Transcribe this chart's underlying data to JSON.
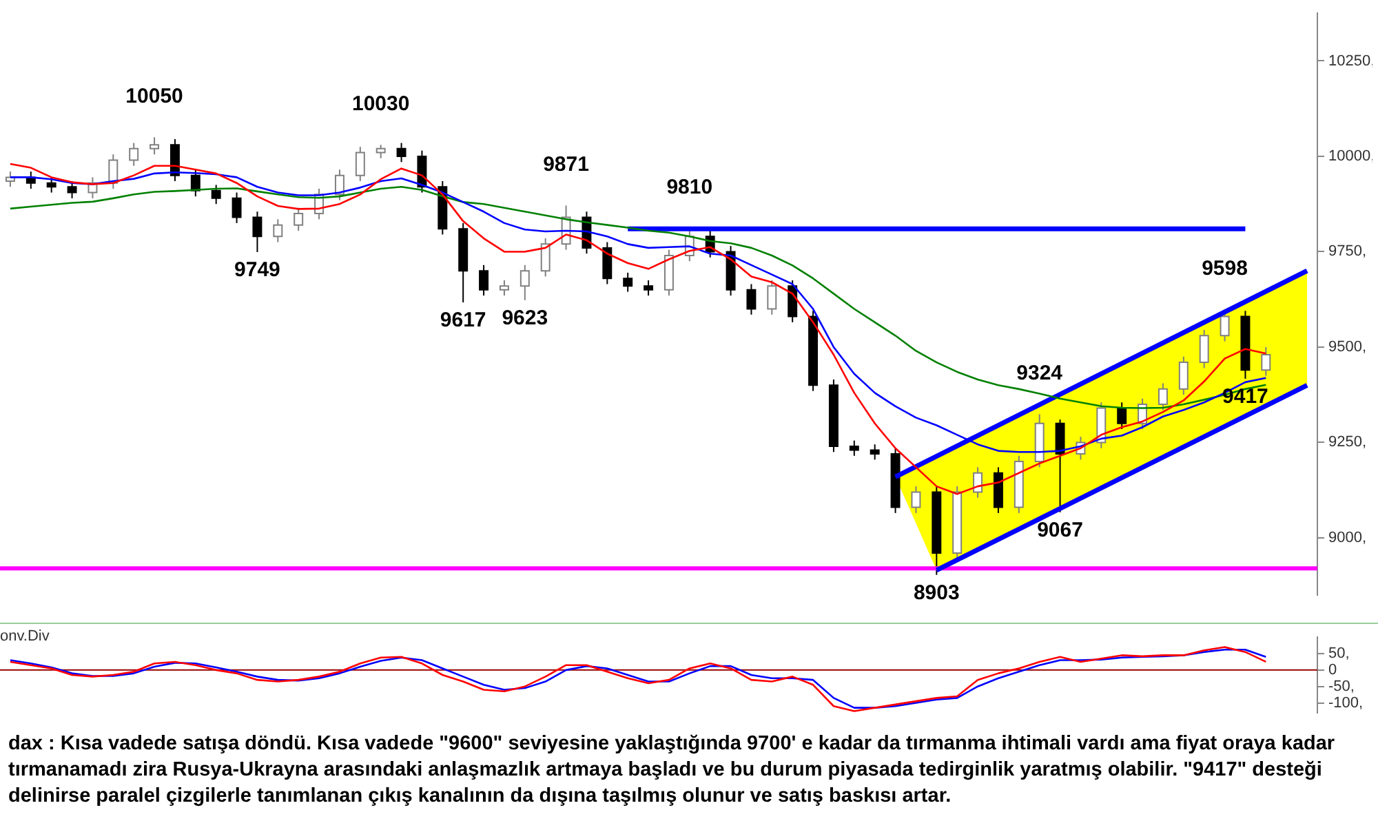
{
  "chart_data": [
    {
      "type": "candlestick",
      "categories": [
        null,
        null,
        null,
        null,
        null,
        null,
        null,
        null,
        null,
        null,
        null,
        null,
        null,
        null,
        null,
        null,
        null,
        null,
        null,
        null,
        null,
        null,
        null,
        null,
        null,
        null,
        null,
        null,
        null,
        null,
        null,
        null,
        null,
        null,
        null,
        null,
        null,
        null,
        null,
        null,
        null,
        null,
        null,
        null,
        null,
        null,
        null,
        null,
        null,
        null,
        null,
        null,
        null,
        null,
        null,
        null,
        null,
        null,
        null,
        null,
        null,
        null,
        null,
        null
      ],
      "ohlc": [
        [
          9935,
          9960,
          9920,
          9945
        ],
        [
          9945,
          9960,
          9915,
          9930
        ],
        [
          9930,
          9945,
          9905,
          9920
        ],
        [
          9920,
          9935,
          9890,
          9905
        ],
        [
          9905,
          9945,
          9890,
          9930
        ],
        [
          9930,
          10005,
          9915,
          9990
        ],
        [
          9990,
          10035,
          9975,
          10020
        ],
        [
          10020,
          10050,
          10005,
          10030
        ],
        [
          10030,
          10045,
          9935,
          9950
        ],
        [
          9950,
          9965,
          9895,
          9910
        ],
        [
          9910,
          9925,
          9875,
          9890
        ],
        [
          9890,
          9905,
          9825,
          9840
        ],
        [
          9840,
          9855,
          9749,
          9790
        ],
        [
          9790,
          9835,
          9775,
          9820
        ],
        [
          9820,
          9865,
          9805,
          9850
        ],
        [
          9850,
          9915,
          9835,
          9900
        ],
        [
          9900,
          9965,
          9885,
          9950
        ],
        [
          9950,
          10025,
          9935,
          10010
        ],
        [
          10010,
          10030,
          9995,
          10020
        ],
        [
          10020,
          10035,
          9985,
          10000
        ],
        [
          10000,
          10015,
          9905,
          9920
        ],
        [
          9920,
          9935,
          9795,
          9810
        ],
        [
          9810,
          9825,
          9617,
          9700
        ],
        [
          9700,
          9715,
          9635,
          9650
        ],
        [
          9650,
          9675,
          9635,
          9660
        ],
        [
          9660,
          9715,
          9623,
          9700
        ],
        [
          9700,
          9785,
          9685,
          9770
        ],
        [
          9770,
          9871,
          9755,
          9840
        ],
        [
          9840,
          9855,
          9745,
          9760
        ],
        [
          9760,
          9775,
          9665,
          9680
        ],
        [
          9680,
          9695,
          9645,
          9660
        ],
        [
          9660,
          9675,
          9635,
          9650
        ],
        [
          9650,
          9755,
          9635,
          9740
        ],
        [
          9740,
          9810,
          9725,
          9790
        ],
        [
          9790,
          9805,
          9735,
          9750
        ],
        [
          9750,
          9765,
          9635,
          9650
        ],
        [
          9650,
          9665,
          9585,
          9600
        ],
        [
          9600,
          9675,
          9585,
          9660
        ],
        [
          9660,
          9675,
          9565,
          9580
        ],
        [
          9580,
          9595,
          9385,
          9400
        ],
        [
          9400,
          9415,
          9225,
          9240
        ],
        [
          9240,
          9255,
          9215,
          9230
        ],
        [
          9230,
          9245,
          9205,
          9220
        ],
        [
          9220,
          9235,
          9065,
          9080
        ],
        [
          9080,
          9135,
          9065,
          9120
        ],
        [
          9120,
          9135,
          8903,
          8960
        ],
        [
          8960,
          9135,
          8945,
          9120
        ],
        [
          9120,
          9185,
          9105,
          9170
        ],
        [
          9170,
          9185,
          9065,
          9080
        ],
        [
          9080,
          9215,
          9065,
          9200
        ],
        [
          9200,
          9324,
          9185,
          9300
        ],
        [
          9300,
          9310,
          9067,
          9220
        ],
        [
          9220,
          9265,
          9205,
          9250
        ],
        [
          9250,
          9355,
          9235,
          9340
        ],
        [
          9340,
          9355,
          9285,
          9300
        ],
        [
          9300,
          9365,
          9285,
          9350
        ],
        [
          9350,
          9405,
          9335,
          9390
        ],
        [
          9390,
          9475,
          9375,
          9460
        ],
        [
          9460,
          9545,
          9445,
          9530
        ],
        [
          9530,
          9598,
          9515,
          9580
        ],
        [
          9580,
          9595,
          9417,
          9440
        ],
        [
          9440,
          9500,
          9425,
          9480
        ],
        null,
        null
      ],
      "series": [
        {
          "type": "line",
          "color": "#ff0000",
          "values": [
            9980,
            9970,
            9945,
            9932,
            9927,
            9930,
            9950,
            9975,
            9975,
            9965,
            9955,
            9930,
            9895,
            9870,
            9862,
            9863,
            9875,
            9900,
            9940,
            9968,
            9950,
            9900,
            9830,
            9785,
            9750,
            9750,
            9760,
            9795,
            9780,
            9745,
            9720,
            9705,
            9730,
            9752,
            9762,
            9730,
            9685,
            9670,
            9640,
            9565,
            9480,
            9380,
            9300,
            9235,
            9185,
            9135,
            9115,
            9135,
            9145,
            9170,
            9195,
            9215,
            9235,
            9270,
            9290,
            9305,
            9330,
            9360,
            9410,
            9470,
            9495,
            9483,
            null,
            null
          ]
        },
        {
          "type": "line",
          "color": "#0000ff",
          "values": [
            9945,
            9945,
            9940,
            9930,
            9927,
            9935,
            9941,
            9955,
            9958,
            9956,
            9953,
            9945,
            9920,
            9905,
            9898,
            9898,
            9905,
            9918,
            9935,
            9942,
            9925,
            9905,
            9880,
            9855,
            9825,
            9808,
            9803,
            9805,
            9803,
            9790,
            9770,
            9760,
            9762,
            9764,
            9745,
            9740,
            9715,
            9690,
            9665,
            9600,
            9500,
            9430,
            9380,
            9345,
            9315,
            9295,
            9270,
            9245,
            9228,
            9225,
            9225,
            9228,
            9240,
            9260,
            9268,
            9290,
            9318,
            9335,
            9355,
            9380,
            9408,
            9419,
            null,
            null
          ]
        },
        {
          "type": "line",
          "color": "#008000",
          "values": [
            9863,
            9868,
            9873,
            9878,
            9881,
            9890,
            9900,
            9907,
            9909,
            9912,
            9915,
            9916,
            9908,
            9900,
            9893,
            9891,
            9895,
            9905,
            9915,
            9920,
            9912,
            9895,
            9880,
            9875,
            9865,
            9855,
            9845,
            9835,
            9827,
            9820,
            9813,
            9805,
            9800,
            9790,
            9778,
            9772,
            9760,
            9740,
            9714,
            9680,
            9640,
            9600,
            9565,
            9530,
            9490,
            9460,
            9435,
            9415,
            9400,
            9390,
            9378,
            9365,
            9355,
            9345,
            9341,
            9340,
            9341,
            9350,
            9362,
            9375,
            9390,
            9401,
            null,
            null
          ]
        },
        {
          "type": "line",
          "color": "#0000ff",
          "values": [
            null,
            null,
            null,
            null,
            null,
            null,
            null,
            null,
            null,
            null,
            null,
            null,
            null,
            null,
            null,
            null,
            null,
            null,
            null,
            null,
            null,
            null,
            null,
            null,
            null,
            null,
            null,
            null,
            null,
            null,
            null,
            null,
            null,
            null,
            null,
            null,
            null,
            null,
            null,
            null,
            null,
            null,
            null,
            9160,
            null,
            null,
            null,
            null,
            null,
            null,
            null,
            null,
            null,
            null,
            null,
            null,
            null,
            null,
            null,
            null,
            null,
            null,
            null,
            9700
          ]
        },
        {
          "type": "line",
          "color": "#0000ff",
          "values": [
            null,
            null,
            null,
            null,
            null,
            null,
            null,
            null,
            null,
            null,
            null,
            null,
            null,
            null,
            null,
            null,
            null,
            null,
            null,
            null,
            null,
            null,
            null,
            null,
            null,
            null,
            null,
            null,
            null,
            null,
            null,
            null,
            null,
            null,
            null,
            null,
            null,
            null,
            null,
            null,
            null,
            null,
            null,
            null,
            null,
            8915,
            null,
            null,
            null,
            null,
            null,
            null,
            null,
            null,
            null,
            null,
            null,
            null,
            null,
            null,
            null,
            null,
            null,
            9400
          ],
          "lower": [
            null,
            null,
            null,
            null,
            null,
            null,
            null,
            null,
            null,
            null,
            null,
            null,
            null,
            null,
            null,
            null,
            null,
            null,
            null,
            null,
            null,
            null,
            null,
            null,
            null,
            null,
            null,
            null,
            null,
            null,
            null,
            null,
            null,
            null,
            null,
            null,
            null,
            null,
            null,
            null,
            null,
            null,
            null,
            9160,
            9038,
            8915,
            8942,
            8969,
            8996,
            9023,
            9050,
            9077,
            9104,
            9131,
            9158,
            9185,
            9212,
            9239,
            9266,
            9293,
            9320,
            9347,
            9374,
            9400
          ],
          "upper": [
            null,
            null,
            null,
            null,
            null,
            null,
            null,
            null,
            null,
            null,
            null,
            null,
            null,
            null,
            null,
            null,
            null,
            null,
            null,
            null,
            null,
            null,
            null,
            null,
            null,
            null,
            null,
            null,
            null,
            null,
            null,
            null,
            null,
            null,
            null,
            null,
            null,
            null,
            null,
            null,
            null,
            null,
            null,
            9160,
            9187,
            9214,
            9241,
            9268,
            9295,
            9322,
            9349,
            9376,
            9403,
            9430,
            9457,
            9484,
            9511,
            9538,
            9565,
            9592,
            9619,
            9646,
            9673,
            9700
          ]
        },
        {
          "type": "line",
          "color": "#0000ff",
          "values": [
            null,
            null,
            null,
            null,
            null,
            null,
            null,
            null,
            null,
            null,
            null,
            null,
            null,
            null,
            null,
            null,
            null,
            null,
            null,
            null,
            null,
            null,
            null,
            null,
            null,
            null,
            null,
            null,
            null,
            null,
            9810,
            null,
            null,
            null,
            null,
            null,
            null,
            null,
            null,
            null,
            null,
            null,
            null,
            null,
            null,
            null,
            null,
            null,
            null,
            null,
            null,
            null,
            null,
            null,
            null,
            null,
            null,
            null,
            null,
            null,
            9810,
            null,
            null,
            null
          ]
        }
      ],
      "ylim": [
        8850,
        10375
      ],
      "yticks": [
        {
          "value": 9000,
          "label": "9000,"
        },
        {
          "value": 9250,
          "label": "9250,"
        },
        {
          "value": 9500,
          "label": "9500,"
        },
        {
          "value": 9750,
          "label": "9750,"
        },
        {
          "value": 10000,
          "label": "10000,"
        },
        {
          "value": 10250,
          "label": "10250,"
        }
      ],
      "tick_labels": "y",
      "grid": false,
      "legend": false,
      "ref_lines": [
        {
          "axis": "y",
          "value": 8920,
          "color": "#ff00ff"
        }
      ],
      "annotations": [
        {
          "text": "10050",
          "y": 10050
        },
        {
          "text": "10030",
          "y": 10030
        },
        {
          "text": "9871",
          "y": 9871
        },
        {
          "text": "9810",
          "y": 9810
        },
        {
          "text": "9749",
          "y": 9749
        },
        {
          "text": "9617",
          "y": 9617
        },
        {
          "text": "9623",
          "y": 9623
        },
        {
          "text": "8903",
          "y": 8903
        },
        {
          "text": "9324",
          "y": 9324
        },
        {
          "text": "9067",
          "y": 9067
        },
        {
          "text": "9598",
          "y": 9598
        },
        {
          "text": "9417",
          "y": 9417
        },
        "dax : Kısa vadede satışa döndü. Kısa vadede \"9600\" seviyesine yaklaştığında 9700' e kadar da tırmanma ihtimali vardı ama fiyat oraya kadar tırmanamadı zira Rusya-Ukrayna arasındaki anlaşmazlık artmaya başladı ve bu durum piyasada tedirginlik yaratmış olabilir. \"9417\" desteği delinirse paralel çizgilerle tanımlanan çıkış kanalının da dışına taşılmış olunur ve satış baskısı artar."
      ]
    },
    {
      "type": "line",
      "title": "onv.Div",
      "categories": [
        null,
        null,
        null,
        null,
        null,
        null,
        null,
        null,
        null,
        null,
        null,
        null,
        null,
        null,
        null,
        null,
        null,
        null,
        null,
        null,
        null,
        null,
        null,
        null,
        null,
        null,
        null,
        null,
        null,
        null,
        null,
        null,
        null,
        null,
        null,
        null,
        null,
        null,
        null,
        null,
        null,
        null,
        null,
        null,
        null,
        null,
        null,
        null,
        null,
        null,
        null,
        null,
        null,
        null,
        null,
        null,
        null,
        null,
        null,
        null,
        null,
        null,
        null,
        null
      ],
      "series": [
        {
          "color": "#ff0000",
          "values": [
            25,
            15,
            5,
            -15,
            -20,
            -15,
            -5,
            20,
            25,
            15,
            0,
            -10,
            -30,
            -35,
            -30,
            -20,
            -5,
            20,
            38,
            40,
            20,
            -15,
            -35,
            -60,
            -65,
            -50,
            -20,
            15,
            15,
            -5,
            -25,
            -40,
            -30,
            5,
            20,
            5,
            -30,
            -35,
            -20,
            -45,
            -110,
            -125,
            -115,
            -105,
            -95,
            -85,
            -80,
            -30,
            -10,
            5,
            25,
            40,
            25,
            35,
            45,
            42,
            45,
            45,
            60,
            70,
            55,
            25,
            null,
            null
          ]
        },
        {
          "color": "#0000ff",
          "values": [
            30,
            20,
            8,
            -10,
            -18,
            -18,
            -10,
            10,
            22,
            20,
            8,
            -5,
            -20,
            -30,
            -32,
            -25,
            -10,
            10,
            28,
            38,
            30,
            5,
            -20,
            -45,
            -60,
            -55,
            -35,
            0,
            12,
            5,
            -15,
            -35,
            -35,
            -10,
            12,
            12,
            -15,
            -25,
            -25,
            -30,
            -85,
            -115,
            -115,
            -110,
            -100,
            -90,
            -85,
            -50,
            -25,
            -5,
            15,
            30,
            30,
            32,
            38,
            40,
            42,
            45,
            55,
            62,
            62,
            40,
            null,
            null
          ]
        }
      ],
      "ylim": [
        -130,
        100
      ],
      "yticks": [
        {
          "value": -100,
          "label": "-100,"
        },
        {
          "value": -50,
          "label": "-50,"
        },
        0,
        {
          "value": 50,
          "label": "50,"
        }
      ],
      "tick_labels": "y",
      "grid": false,
      "legend": false,
      "ref_lines": [
        {
          "axis": "y",
          "value": 0,
          "color": "#990000"
        }
      ]
    }
  ]
}
